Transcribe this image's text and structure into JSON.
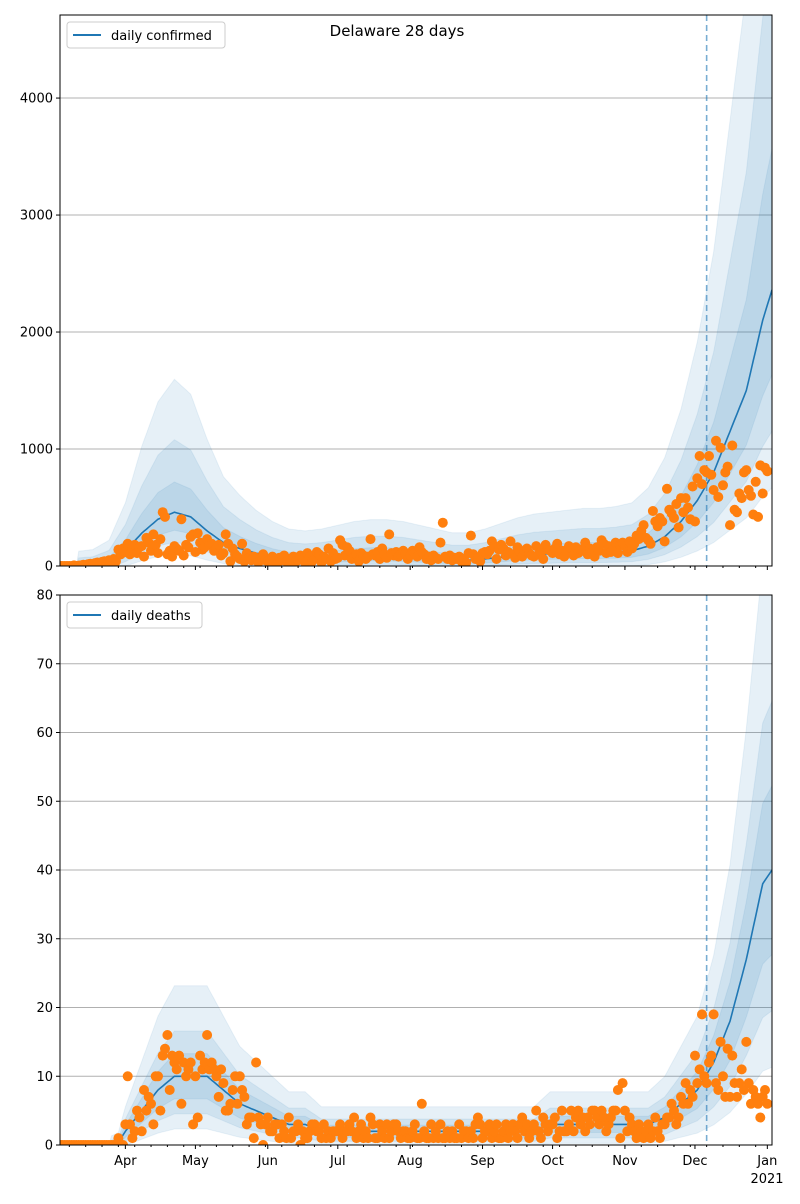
{
  "title": "Delaware 28 days",
  "colors": {
    "model": "#1f77b4",
    "observed": "#ff7f0e",
    "grid": "#b0b0b0"
  },
  "x_axis": {
    "start_date": "2020-03-04",
    "end_day": 305,
    "forecast_start_day": 277,
    "month_ticks": [
      {
        "label": "Apr",
        "day": 28
      },
      {
        "label": "May",
        "day": 58
      },
      {
        "label": "Jun",
        "day": 89
      },
      {
        "label": "Jul",
        "day": 119
      },
      {
        "label": "Aug",
        "day": 150
      },
      {
        "label": "Sep",
        "day": 181
      },
      {
        "label": "Oct",
        "day": 211
      },
      {
        "label": "Nov",
        "day": 242
      },
      {
        "label": "Dec",
        "day": 272
      },
      {
        "label": "Jan",
        "day": 303
      }
    ],
    "year_label": "2021"
  },
  "chart_data": [
    {
      "type": "line",
      "legend": "daily confirmed",
      "legend_position": "upper-left",
      "ylim": [
        0,
        4710
      ],
      "yticks": [
        0,
        1000,
        2000,
        3000,
        4000
      ],
      "grid": true,
      "model_knots": {
        "day": [
          0,
          7,
          14,
          21,
          28,
          35,
          42,
          49,
          56,
          63,
          70,
          77,
          84,
          91,
          98,
          105,
          112,
          119,
          126,
          133,
          140,
          147,
          154,
          161,
          168,
          175,
          182,
          189,
          196,
          203,
          210,
          217,
          224,
          231,
          238,
          245,
          252,
          259,
          266,
          273,
          280,
          287,
          294,
          301,
          305
        ],
        "value": [
          0,
          0,
          5,
          30,
          130,
          280,
          400,
          460,
          420,
          300,
          200,
          150,
          110,
          80,
          60,
          55,
          60,
          70,
          80,
          85,
          85,
          80,
          70,
          60,
          50,
          50,
          60,
          75,
          90,
          100,
          105,
          110,
          115,
          115,
          120,
          130,
          170,
          250,
          380,
          560,
          800,
          1150,
          1500,
          2100,
          2360
        ]
      },
      "band_factors": [
        [
          0.3,
          3.2
        ],
        [
          0.5,
          2.2
        ],
        [
          0.7,
          1.5
        ]
      ],
      "observed": [
        0,
        0,
        0,
        0,
        0,
        0,
        5,
        0,
        3,
        5,
        10,
        8,
        15,
        20,
        10,
        25,
        30,
        20,
        35,
        40,
        30,
        50,
        45,
        60,
        40,
        140,
        100,
        150,
        120,
        190,
        100,
        150,
        180,
        110,
        160,
        170,
        80,
        240,
        200,
        130,
        270,
        180,
        110,
        230,
        460,
        420,
        100,
        130,
        80,
        170,
        150,
        130,
        400,
        90,
        180,
        160,
        250,
        270,
        120,
        280,
        200,
        140,
        160,
        230,
        180,
        190,
        130,
        150,
        180,
        90,
        110,
        270,
        190,
        40,
        150,
        100,
        80,
        60,
        190,
        40,
        110,
        70,
        50,
        80,
        70,
        30,
        60,
        100,
        50,
        40,
        60,
        80,
        30,
        20,
        70,
        50,
        90,
        40,
        60,
        30,
        80,
        40,
        50,
        90,
        70,
        30,
        110,
        80,
        40,
        60,
        120,
        100,
        30,
        80,
        60,
        150,
        40,
        110,
        60,
        70,
        220,
        180,
        90,
        160,
        130,
        60,
        80,
        100,
        40,
        110,
        90,
        60,
        80,
        230,
        100,
        90,
        120,
        60,
        150,
        100,
        70,
        270,
        110,
        90,
        120,
        80,
        100,
        130,
        110,
        60,
        90,
        130,
        110,
        80,
        160,
        120,
        100,
        60,
        80,
        50,
        90,
        70,
        60,
        200,
        370,
        80,
        60,
        90,
        50,
        70,
        60,
        80,
        40,
        60,
        30,
        110,
        260,
        100,
        60,
        70,
        40,
        110,
        120,
        100,
        130,
        210,
        170,
        60,
        140,
        180,
        150,
        90,
        120,
        210,
        100,
        70,
        160,
        120,
        80,
        130,
        150,
        110,
        90,
        80,
        170,
        100,
        120,
        60,
        180,
        140,
        130,
        110,
        150,
        190,
        100,
        130,
        80,
        120,
        170,
        150,
        90,
        160,
        110,
        140,
        130,
        200,
        100,
        150,
        120,
        80,
        160,
        130,
        220,
        190,
        110,
        170,
        120,
        150,
        200,
        110,
        180,
        200,
        170,
        120,
        210,
        150,
        190,
        260,
        230,
        300,
        350,
        240,
        220,
        190,
        470,
        380,
        340,
        410,
        380,
        210,
        660,
        480,
        450,
        410,
        530,
        330,
        580,
        460,
        580,
        500,
        400,
        680,
        380,
        750,
        940,
        700,
        820,
        800,
        940,
        780,
        650,
        1070,
        590,
        1010,
        690,
        800,
        850,
        350,
        1030,
        480,
        460,
        620,
        580,
        800,
        820,
        650,
        600,
        440,
        720,
        420,
        860,
        620,
        840,
        810
      ]
    },
    {
      "type": "line",
      "legend": "daily deaths",
      "legend_position": "upper-left",
      "ylim": [
        0,
        80
      ],
      "yticks": [
        0,
        10,
        20,
        30,
        40,
        50,
        60,
        70,
        80
      ],
      "grid": true,
      "model_knots": {
        "day": [
          0,
          21,
          25,
          28,
          35,
          42,
          49,
          56,
          63,
          70,
          77,
          84,
          91,
          98,
          105,
          112,
          119,
          175,
          203,
          210,
          252,
          259,
          266,
          273,
          280,
          287,
          294,
          301,
          305
        ],
        "value": [
          0,
          0,
          0.3,
          2,
          5,
          8,
          10,
          10,
          10,
          8,
          6,
          5,
          4,
          3,
          3,
          2,
          2,
          2,
          2,
          3,
          3,
          4,
          6,
          8,
          12,
          18,
          27,
          38,
          40
        ]
      },
      "band_factors": [
        [
          0.3,
          2.2
        ],
        [
          0.5,
          1.6
        ],
        [
          0.7,
          1.3
        ]
      ],
      "observed": [
        0,
        0,
        0,
        0,
        0,
        0,
        0,
        0,
        0,
        0,
        0,
        0,
        0,
        0,
        0,
        0,
        0,
        0,
        0,
        0,
        0,
        0,
        0,
        0,
        0,
        1,
        0,
        0,
        3,
        10,
        3,
        1,
        2,
        5,
        4,
        2,
        8,
        5,
        7,
        6,
        3,
        10,
        10,
        5,
        13,
        14,
        16,
        8,
        13,
        12,
        11,
        13,
        6,
        12,
        10,
        11,
        12,
        3,
        10,
        4,
        13,
        11,
        12,
        16,
        11,
        12,
        11,
        10,
        7,
        11,
        9,
        5,
        5,
        6,
        8,
        10,
        6,
        10,
        8,
        7,
        3,
        4,
        4,
        1,
        12,
        4,
        3,
        0,
        3,
        4,
        2,
        2,
        3,
        3,
        1,
        3,
        2,
        1,
        4,
        1,
        2,
        2,
        3,
        0,
        2,
        1,
        1,
        2,
        3,
        3,
        2,
        2,
        1,
        3,
        1,
        2,
        1,
        2,
        2,
        2,
        3,
        1,
        2,
        2,
        3,
        2,
        4,
        1,
        2,
        3,
        1,
        2,
        1,
        4,
        3,
        1,
        1,
        3,
        2,
        1,
        3,
        1,
        2,
        3,
        3,
        2,
        1,
        2,
        2,
        1,
        1,
        2,
        3,
        1,
        1,
        6,
        2,
        1,
        1,
        3,
        1,
        2,
        1,
        3,
        1,
        1,
        2,
        1,
        2,
        1,
        1,
        3,
        1,
        2,
        2,
        1,
        2,
        1,
        3,
        4,
        3,
        1,
        2,
        2,
        3,
        1,
        2,
        3,
        1,
        1,
        2,
        3,
        1,
        2,
        3,
        2,
        1,
        3,
        4,
        2,
        3,
        1,
        2,
        3,
        5,
        2,
        1,
        4,
        3,
        2,
        3,
        3,
        4,
        1,
        2,
        5,
        2,
        2,
        3,
        5,
        2,
        4,
        5,
        3,
        4,
        2,
        4,
        3,
        5,
        5,
        4,
        3,
        5,
        4,
        2,
        3,
        4,
        5,
        5,
        8,
        1,
        9,
        5,
        2,
        4,
        3,
        2,
        1,
        3,
        2,
        1,
        2,
        3,
        1,
        2,
        4,
        2,
        1,
        3,
        3,
        4,
        4,
        6,
        5,
        3,
        4,
        7,
        6,
        9,
        6,
        8,
        7,
        13,
        9,
        11,
        19,
        10,
        9,
        12,
        13,
        19,
        9,
        8,
        15,
        10,
        7,
        14,
        7,
        13,
        9,
        7,
        9,
        11,
        8,
        15,
        9,
        6,
        8,
        7,
        6,
        4,
        7,
        8,
        6
      ]
    }
  ]
}
